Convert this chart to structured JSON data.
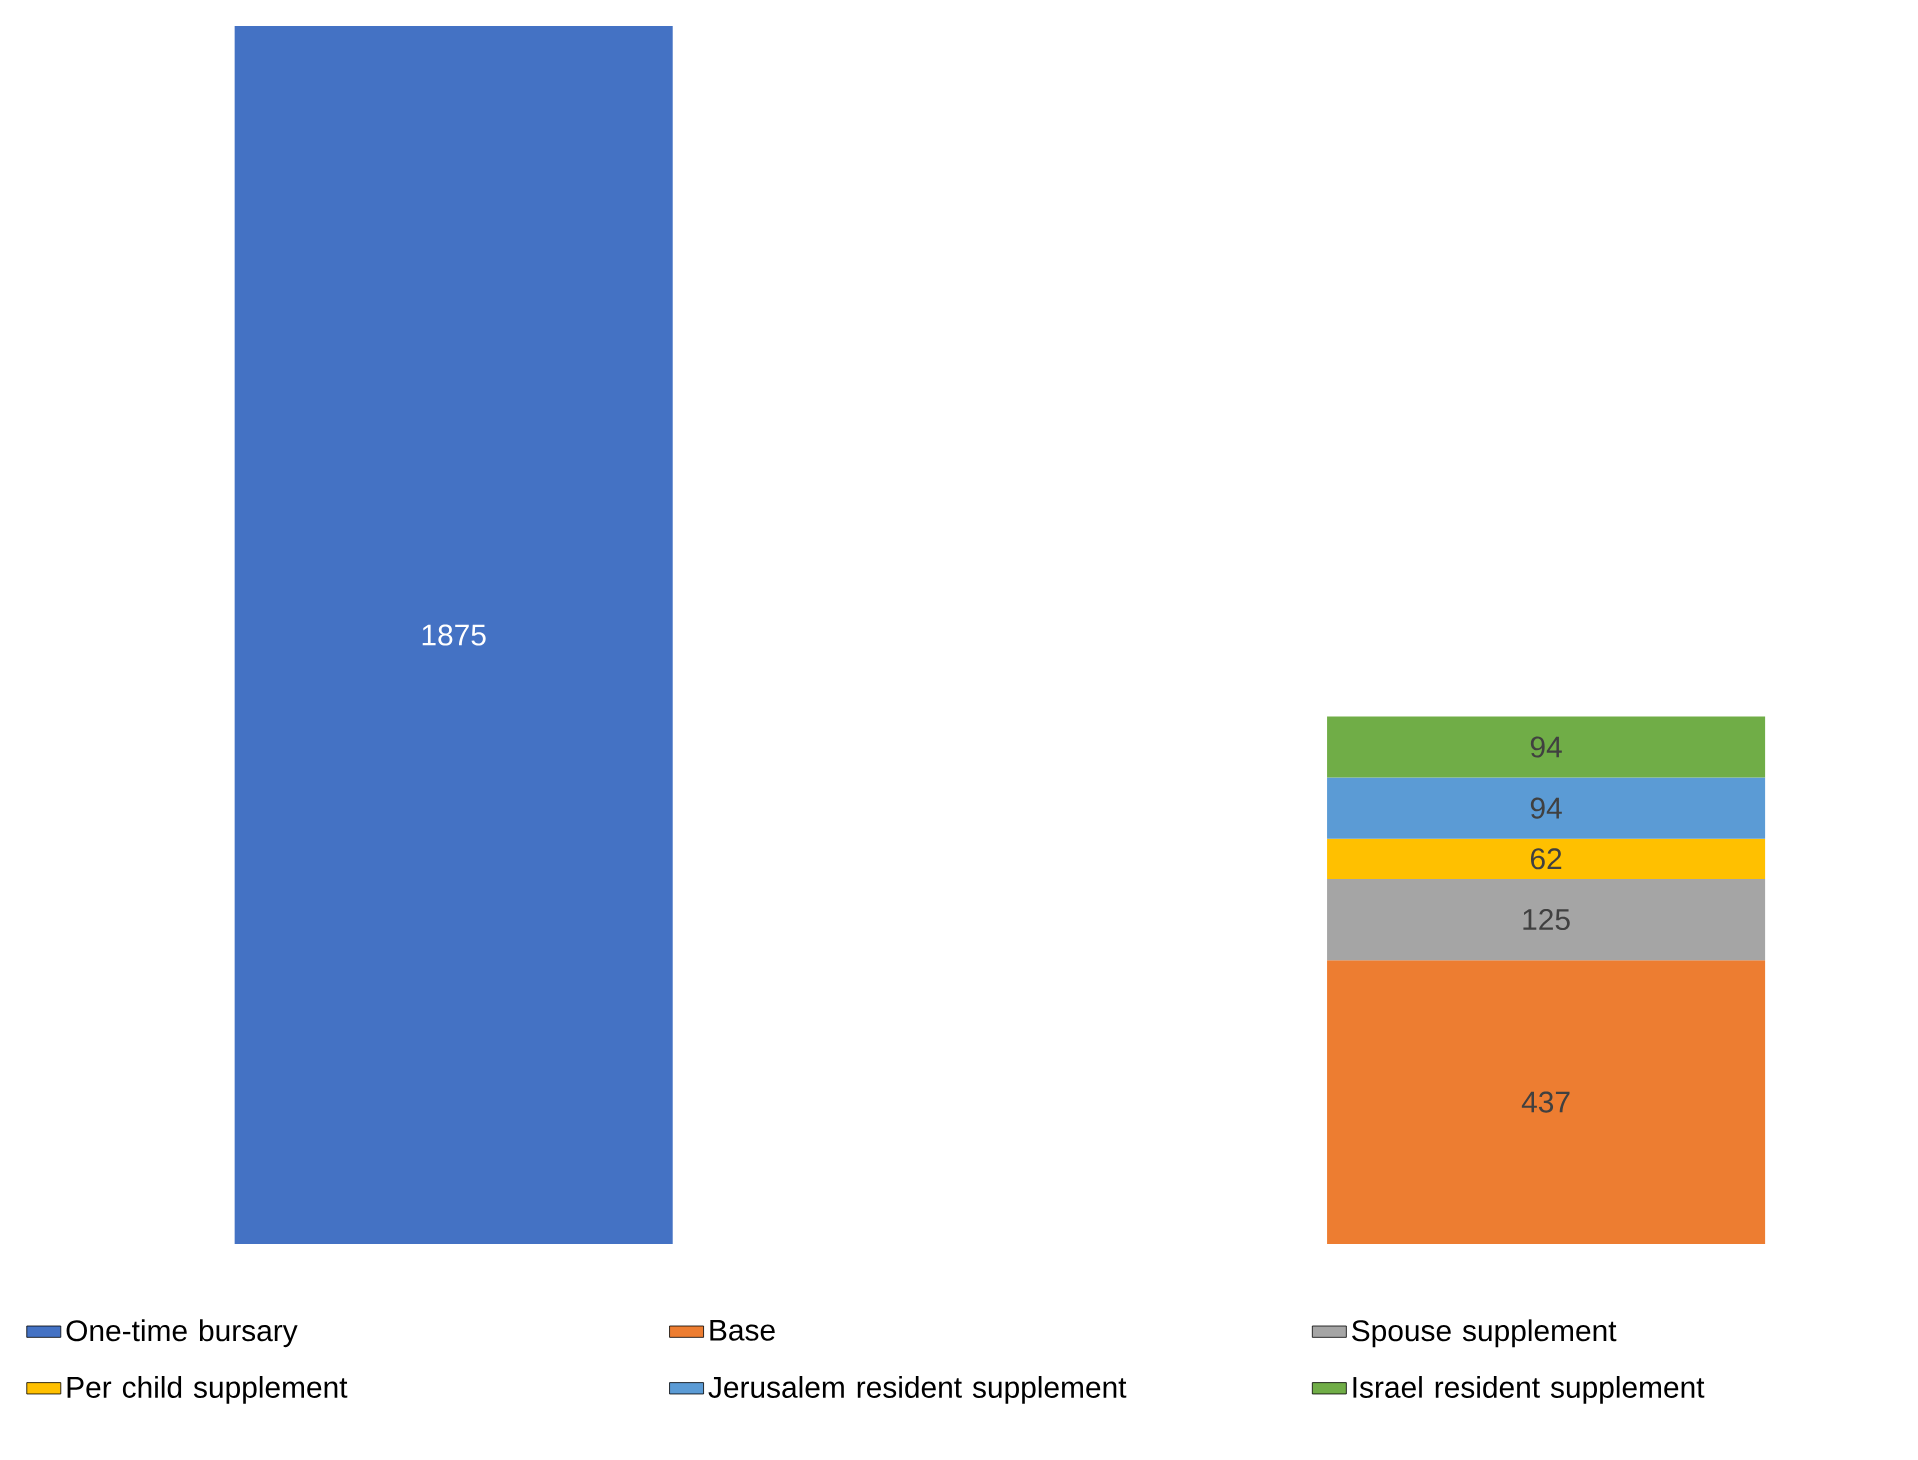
{
  "chart_data": {
    "type": "bar",
    "stacked": true,
    "data_labels": true,
    "legend": "bottom",
    "categories": [
      null,
      null
    ],
    "series": [
      {
        "name": "One-time bursary",
        "color": "#4472c4",
        "values": [
          1875,
          null
        ]
      },
      {
        "name": "Base",
        "color": "#ed7d31",
        "values": [
          null,
          437
        ]
      },
      {
        "name": "Spouse supplement",
        "color": "#a5a5a5",
        "values": [
          null,
          125
        ]
      },
      {
        "name": "Per child supplement",
        "color": "#ffc000",
        "values": [
          null,
          62
        ]
      },
      {
        "name": "Jerusalem resident supplement",
        "color": "#5b9bd5",
        "values": [
          null,
          94
        ]
      },
      {
        "name": "Israel resident supplement",
        "color": "#70ad47",
        "values": [
          null,
          94
        ]
      }
    ]
  }
}
